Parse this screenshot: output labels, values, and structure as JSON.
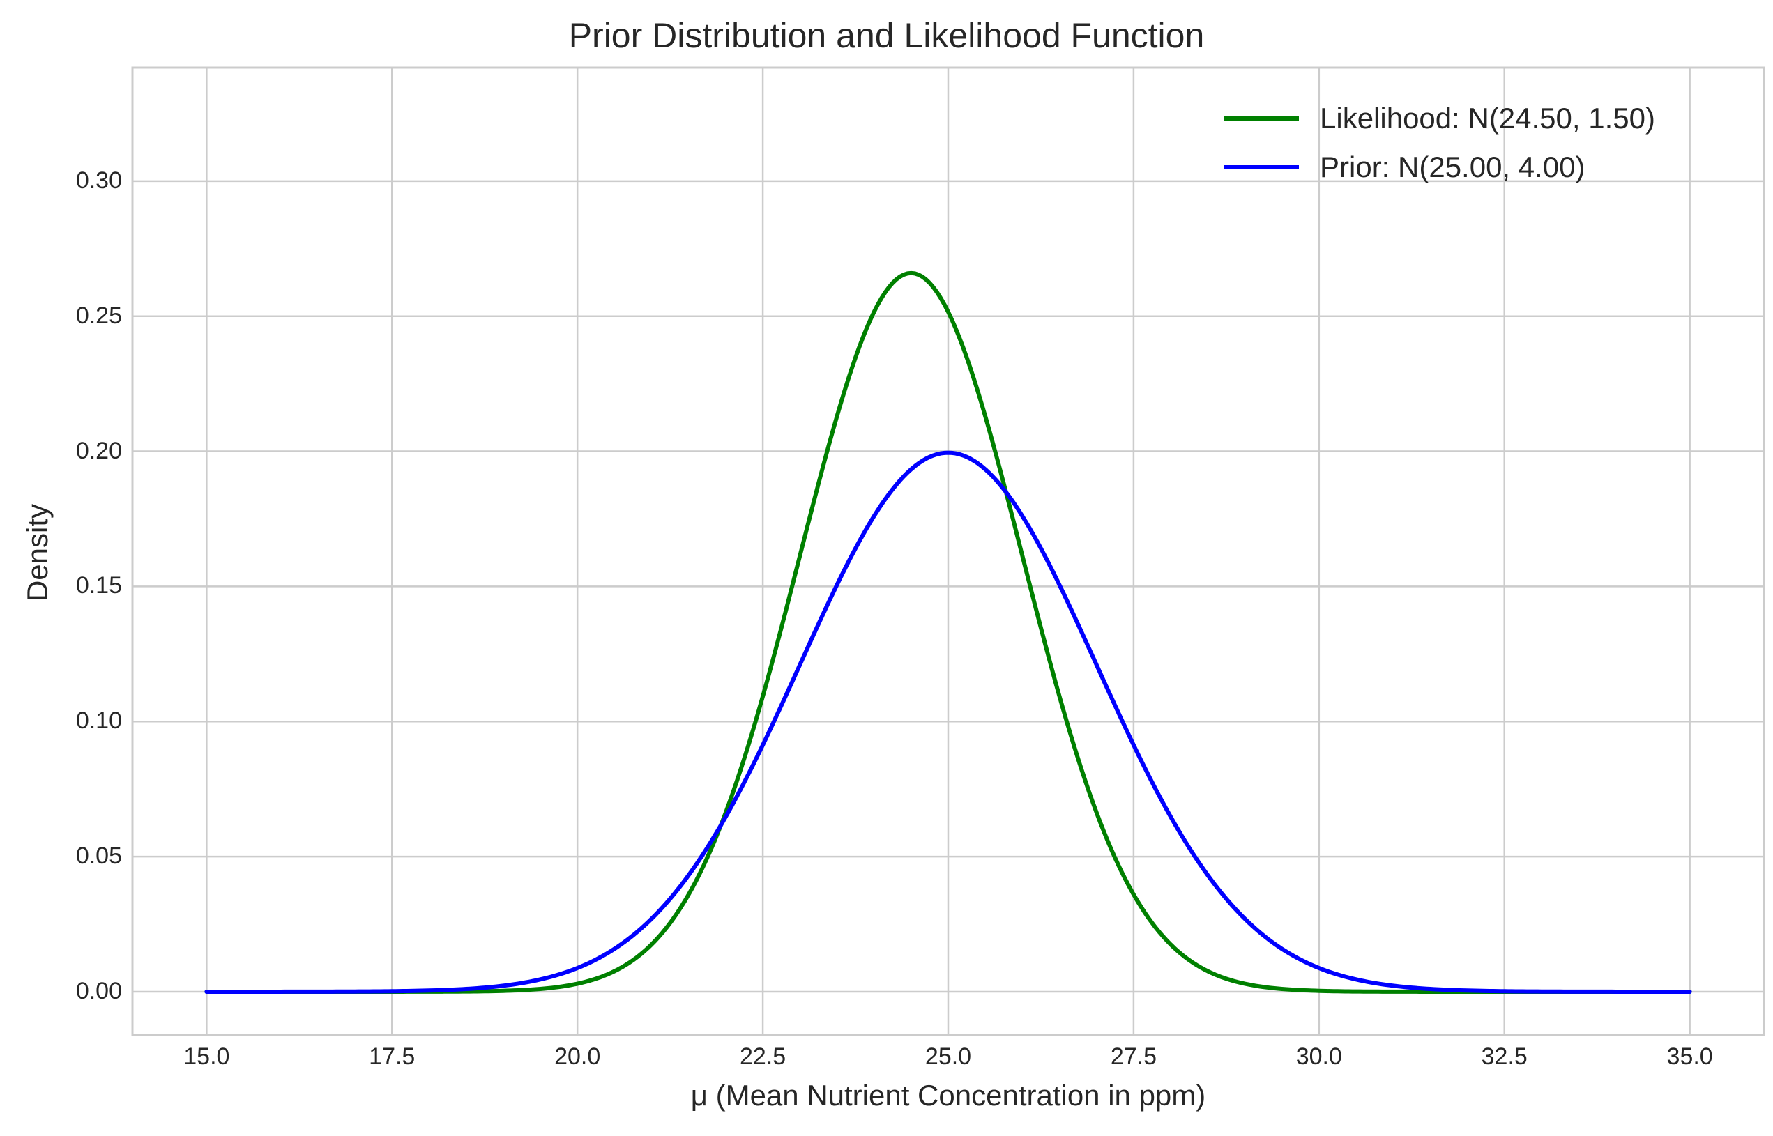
{
  "chart_data": {
    "type": "line",
    "title": "Prior Distribution and Likelihood Function",
    "xlabel": "μ (Mean Nutrient Concentration in ppm)",
    "ylabel": "Density",
    "xlim": [
      14.0,
      36.0
    ],
    "ylim": [
      -0.016,
      0.342
    ],
    "x_ticks": [
      "15.0",
      "17.5",
      "20.0",
      "22.5",
      "25.0",
      "27.5",
      "30.0",
      "32.5",
      "35.0"
    ],
    "y_ticks": [
      "0.00",
      "0.05",
      "0.10",
      "0.15",
      "0.20",
      "0.25",
      "0.30"
    ],
    "grid": true,
    "legend_position": "top-right",
    "x_range": [
      15.0,
      35.0
    ],
    "series": [
      {
        "name": "Likelihood: N(24.50, 1.50)",
        "color": "#008000",
        "distribution": "normal",
        "mean": 24.5,
        "sd": 1.5,
        "x": [
          15.0,
          17.5,
          20.0,
          21.0,
          22.0,
          22.5,
          23.0,
          23.5,
          24.0,
          24.5,
          25.0,
          25.5,
          26.0,
          26.5,
          27.0,
          28.0,
          29.0,
          30.0,
          32.5,
          35.0
        ],
        "y": [
          0.0,
          0.0,
          0.0029,
          0.0173,
          0.0663,
          0.1093,
          0.1613,
          0.213,
          0.2516,
          0.266,
          0.2516,
          0.213,
          0.1613,
          0.1093,
          0.0663,
          0.0173,
          0.0029,
          0.0003,
          0.0,
          0.0
        ]
      },
      {
        "name": "Prior: N(25.00, 4.00)",
        "color": "#0000ff",
        "distribution": "normal",
        "mean": 25.0,
        "sd": 2.0,
        "x": [
          15.0,
          17.5,
          20.0,
          21.0,
          22.0,
          22.5,
          23.0,
          24.0,
          25.0,
          26.0,
          27.0,
          27.5,
          28.0,
          29.0,
          30.0,
          32.5,
          35.0
        ],
        "y": [
          0.0,
          0.0004,
          0.0088,
          0.027,
          0.0648,
          0.0913,
          0.121,
          0.176,
          0.1995,
          0.176,
          0.121,
          0.0913,
          0.0648,
          0.027,
          0.0088,
          0.0004,
          0.0
        ]
      }
    ]
  }
}
